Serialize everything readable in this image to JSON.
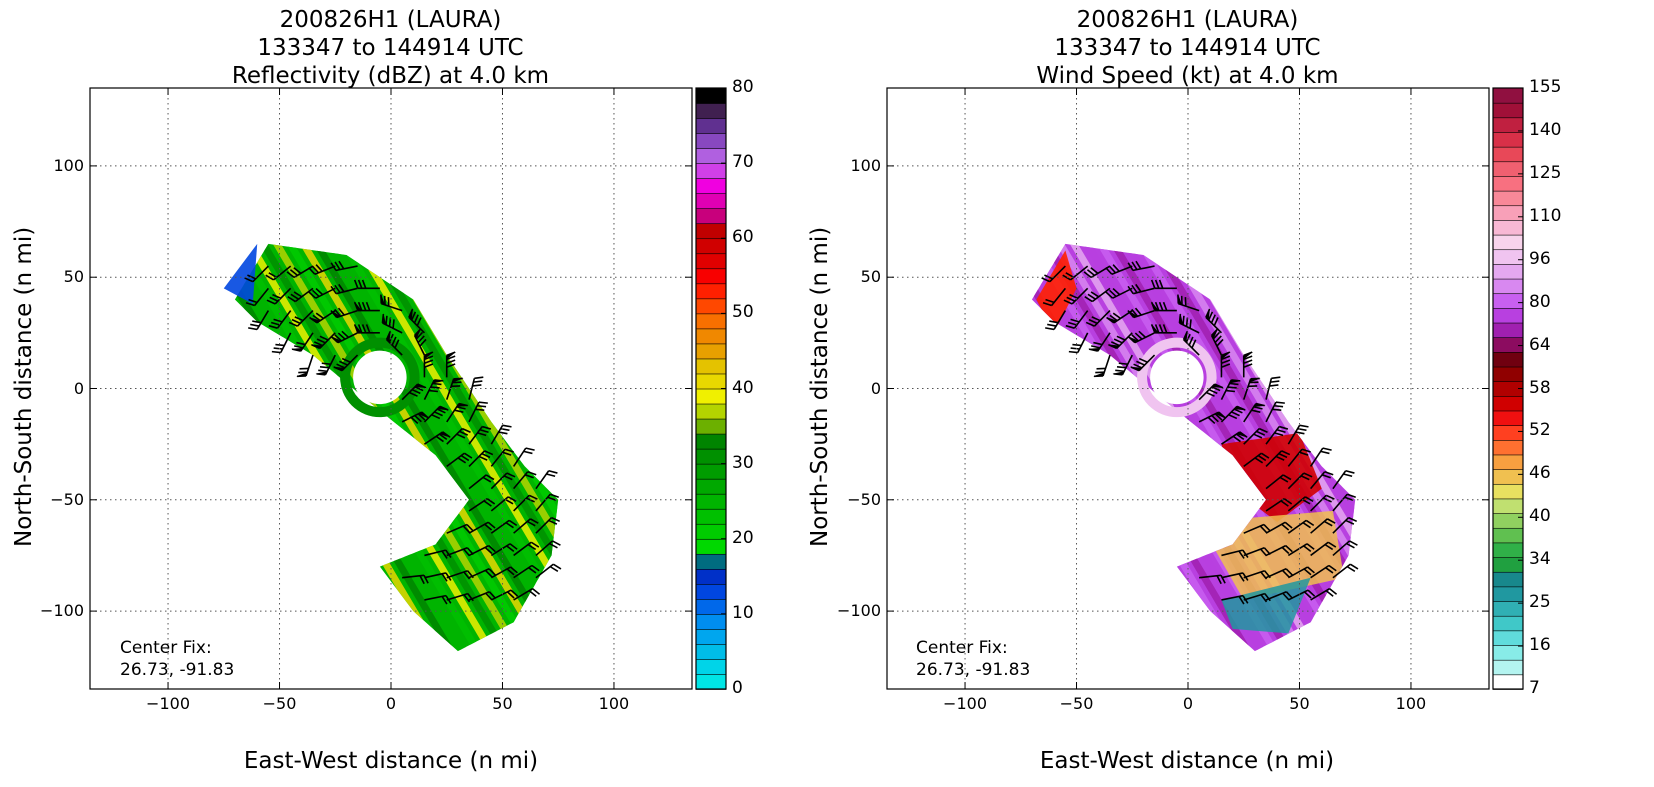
{
  "chart_data": [
    {
      "type": "heatmap",
      "title": [
        "200826H1 (LAURA)",
        "133347 to 144914 UTC",
        "Reflectivity (dBZ) at 4.0 km"
      ],
      "xlabel": "East-West distance (n mi)",
      "ylabel": "North-South distance (n mi)",
      "xlim": [
        -135,
        135
      ],
      "ylim": [
        -135,
        135
      ],
      "xticks": [
        "−100",
        "−50",
        "0",
        "50",
        "100"
      ],
      "yticks": [
        "100",
        "50",
        "0",
        "−50",
        "−100"
      ],
      "grid": true,
      "colorbar": {
        "label_values": [
          "80",
          "70",
          "60",
          "50",
          "40",
          "30",
          "20",
          "10",
          "0"
        ],
        "range": [
          0,
          80
        ],
        "colors": [
          "#00e5e5",
          "#00d4e8",
          "#00bde8",
          "#00a6ee",
          "#008ef0",
          "#0068ea",
          "#0046e0",
          "#0030c8",
          "#006c80",
          "#00d800",
          "#00cc00",
          "#00c000",
          "#00b400",
          "#00a800",
          "#009c00",
          "#009000",
          "#008400",
          "#6cb000",
          "#b4d400",
          "#f0f000",
          "#e8d800",
          "#e4c200",
          "#e8a000",
          "#f08800",
          "#f87000",
          "#ff4800",
          "#ff2000",
          "#f80000",
          "#e00000",
          "#d00000",
          "#c00000",
          "#c8007c",
          "#e000b4",
          "#f000e0",
          "#d040e8",
          "#b060e0",
          "#8848c0",
          "#603090",
          "#402050",
          "#000000"
        ]
      },
      "annotation": [
        "Center Fix:",
        "26.73, -91.83"
      ]
    },
    {
      "type": "heatmap",
      "title": [
        "200826H1 (LAURA)",
        "133347 to 144914 UTC",
        "Wind Speed (kt) at 4.0 km"
      ],
      "xlabel": "East-West distance (n mi)",
      "ylabel": "North-South distance (n mi)",
      "xlim": [
        -135,
        135
      ],
      "ylim": [
        -135,
        135
      ],
      "xticks": [
        "−100",
        "−50",
        "0",
        "50",
        "100"
      ],
      "yticks": [
        "100",
        "50",
        "0",
        "−50",
        "−100"
      ],
      "grid": true,
      "colorbar": {
        "label_values": [
          "155",
          "140",
          "125",
          "110",
          "96",
          "80",
          "64",
          "58",
          "52",
          "46",
          "40",
          "34",
          "25",
          "16",
          "7"
        ],
        "range": [
          7,
          160
        ],
        "colors": [
          "#ffffff",
          "#b4f4f0",
          "#88ece8",
          "#60dcdc",
          "#40c8c8",
          "#30b0b4",
          "#2098a0",
          "#18888c",
          "#20a040",
          "#30b048",
          "#60c050",
          "#90d060",
          "#c0e070",
          "#e8e060",
          "#f0c050",
          "#f8a040",
          "#ff7030",
          "#ff4020",
          "#f01010",
          "#d00000",
          "#b00000",
          "#900000",
          "#700010",
          "#8c0c60",
          "#a020b0",
          "#b840e0",
          "#c860f0",
          "#d888f0",
          "#e4a8f0",
          "#f0c4f0",
          "#f8d4ec",
          "#f8b8d4",
          "#f8a0b8",
          "#f88898",
          "#f87080",
          "#f06070",
          "#e84858",
          "#d83048",
          "#c02040",
          "#a01038",
          "#901040"
        ]
      },
      "annotation": [
        "Center Fix:",
        "26.73, -91.83"
      ]
    }
  ]
}
